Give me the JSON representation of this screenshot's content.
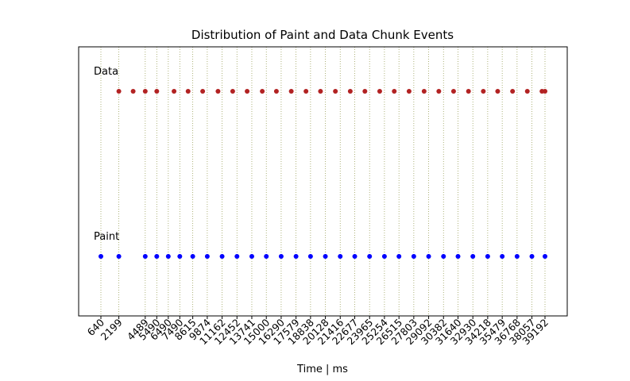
{
  "chart_data": {
    "type": "scatter",
    "title": "Distribution of Paint and Data Chunk Events",
    "xlabel": "Time | ms",
    "ylabel": "",
    "x_ticks": [
      640,
      2199,
      4489,
      5490,
      6490,
      7490,
      8615,
      9874,
      11162,
      12452,
      13741,
      15000,
      16290,
      17579,
      18838,
      20128,
      21416,
      22677,
      23965,
      25254,
      26515,
      27803,
      29092,
      30382,
      31640,
      32930,
      34218,
      35479,
      36768,
      38057,
      39192
    ],
    "series": [
      {
        "name": "Data",
        "color": "#b22222",
        "x": [
          2199,
          3440,
          4489,
          5490,
          6990,
          8209,
          9475,
          10806,
          12081,
          13335,
          14648,
          15875,
          17166,
          18445,
          19703,
          20996,
          22287,
          23558,
          24844,
          26106,
          27393,
          28698,
          29975,
          31256,
          32551,
          33839,
          35084,
          36376,
          37657,
          38930,
          39192
        ]
      },
      {
        "name": "Paint",
        "color": "#0000ff",
        "x": [
          640,
          2199,
          4489,
          5490,
          6490,
          7490,
          8615,
          9874,
          11162,
          12452,
          13741,
          15000,
          16290,
          17579,
          18838,
          20128,
          21416,
          22677,
          23965,
          25254,
          26515,
          27803,
          29092,
          30382,
          31640,
          32930,
          34218,
          35479,
          36768,
          38057,
          39192
        ]
      }
    ],
    "grid_color": "#9aa05a"
  }
}
